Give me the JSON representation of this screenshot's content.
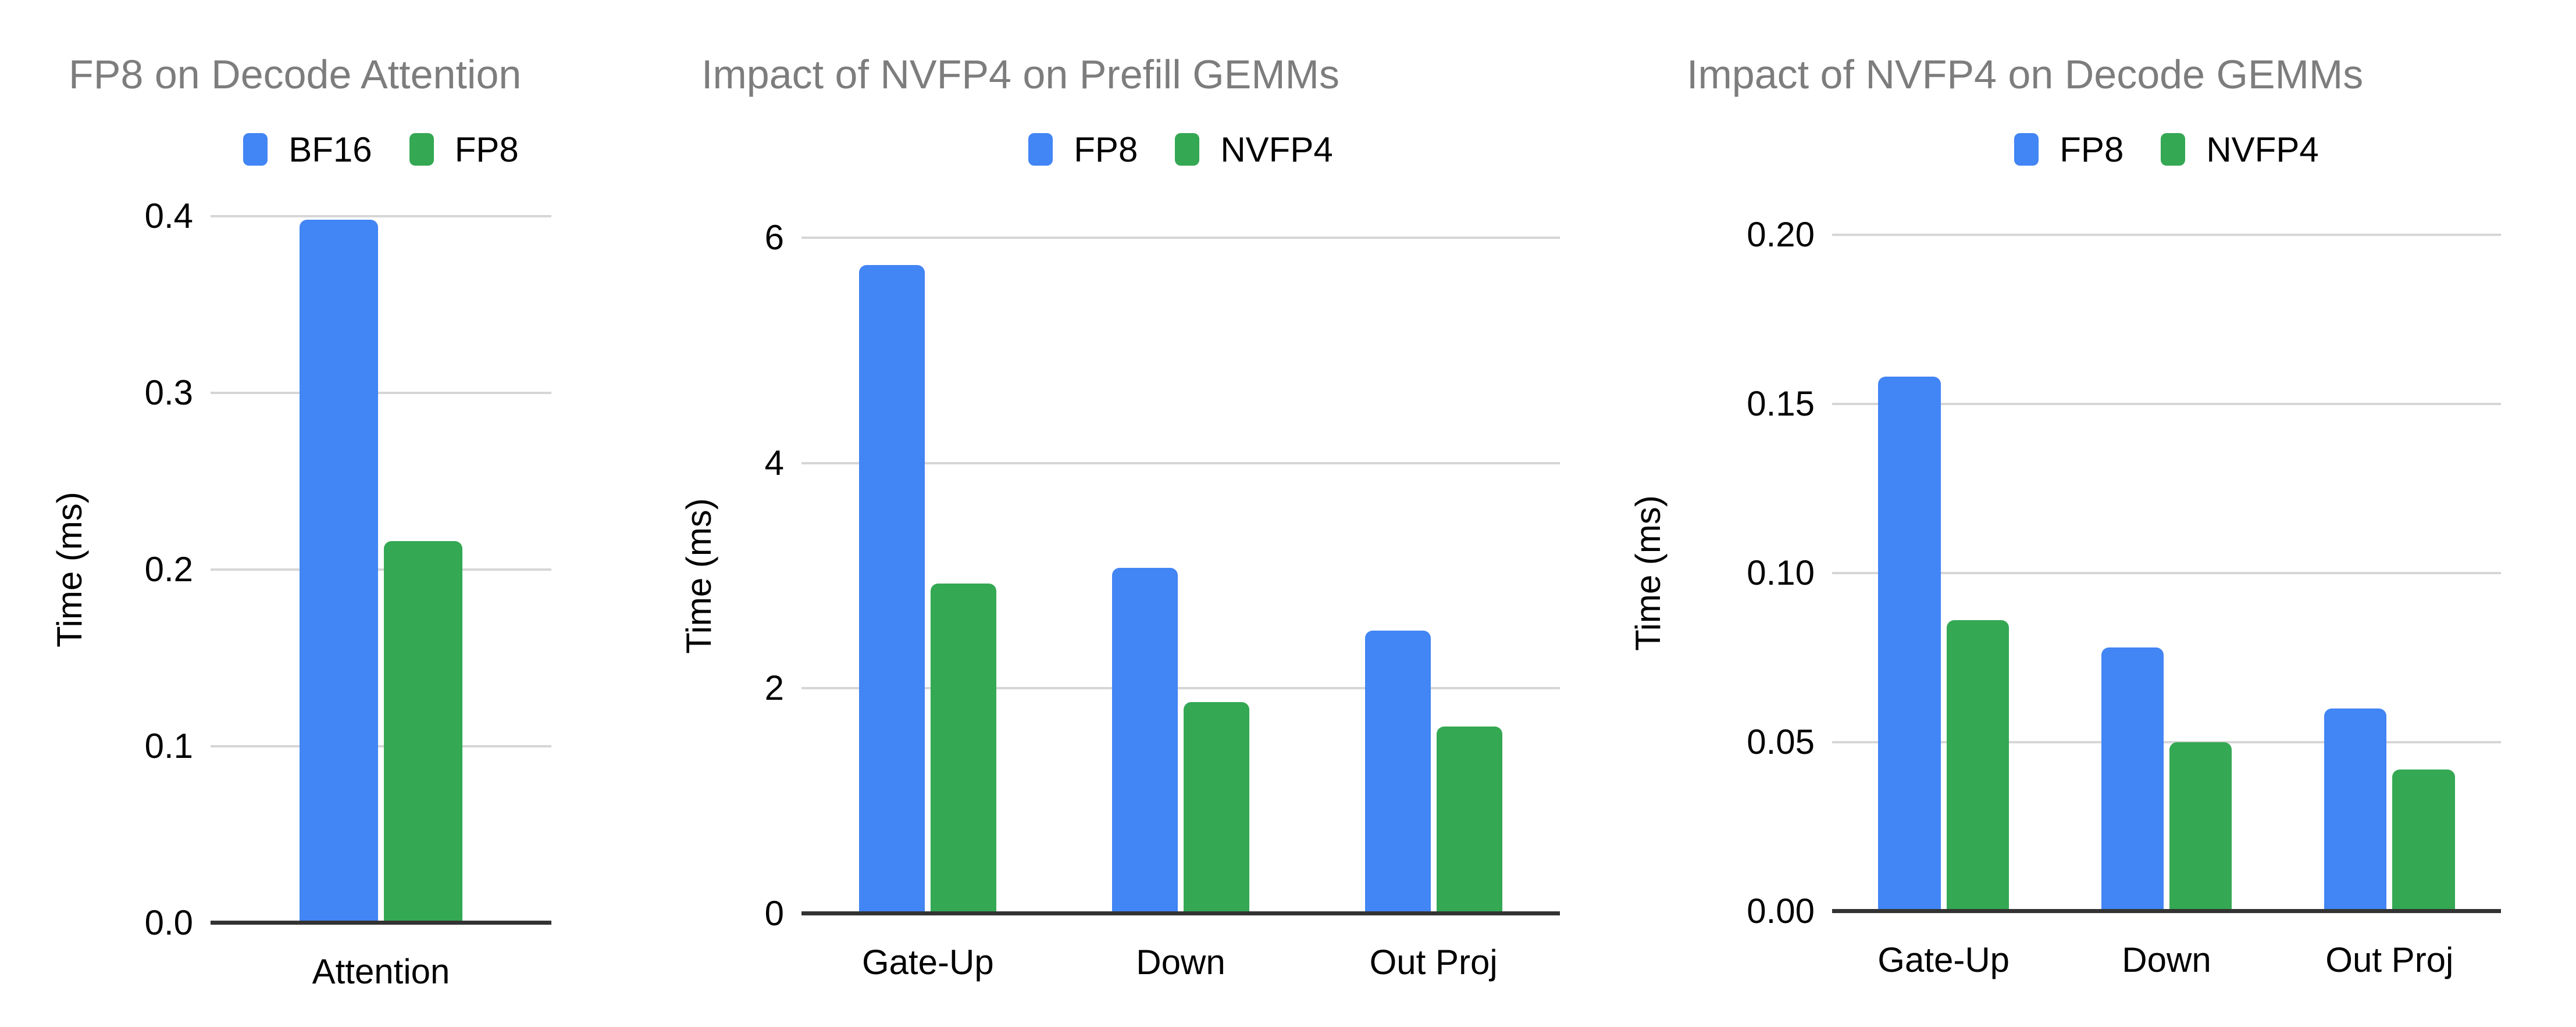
{
  "page": {
    "background_color": "#ffffff",
    "title_color": "#7d7d7d",
    "text_color": "#000000",
    "gridline_color": "#d6d6d6",
    "axis_line_color": "#333333"
  },
  "colors": {
    "series_blue": "#4285F4",
    "series_green": "#34A853"
  },
  "chart_data": [
    {
      "type": "bar",
      "title": "FP8 on Decode Attention",
      "xlabel": "",
      "ylabel": "Time (ms)",
      "categories": [
        "Attention"
      ],
      "series": [
        {
          "name": "BF16",
          "color": "#4285F4",
          "values": [
            0.398
          ]
        },
        {
          "name": "FP8",
          "color": "#34A853",
          "values": [
            0.216
          ]
        }
      ],
      "ylim": [
        0,
        0.4
      ],
      "yticks": [
        {
          "value": 0.0,
          "label": "0.0"
        },
        {
          "value": 0.1,
          "label": "0.1"
        },
        {
          "value": 0.2,
          "label": "0.2"
        },
        {
          "value": 0.3,
          "label": "0.3"
        },
        {
          "value": 0.4,
          "label": "0.4"
        }
      ],
      "grid": true,
      "legend_position": "top"
    },
    {
      "type": "bar",
      "title": "Impact of NVFP4 on Prefill GEMMs",
      "xlabel": "",
      "ylabel": "Time (ms)",
      "categories": [
        "Gate-Up",
        "Down",
        "Out Proj"
      ],
      "series": [
        {
          "name": "FP8",
          "color": "#4285F4",
          "values": [
            5.76,
            3.07,
            2.51
          ]
        },
        {
          "name": "NVFP4",
          "color": "#34A853",
          "values": [
            2.93,
            1.88,
            1.66
          ]
        }
      ],
      "ylim": [
        0,
        6
      ],
      "yticks": [
        {
          "value": 0,
          "label": "0"
        },
        {
          "value": 2,
          "label": "2"
        },
        {
          "value": 4,
          "label": "4"
        },
        {
          "value": 6,
          "label": "6"
        }
      ],
      "grid": true,
      "legend_position": "top"
    },
    {
      "type": "bar",
      "title": "Impact of NVFP4 on Decode GEMMs",
      "xlabel": "",
      "ylabel": "Time (ms)",
      "categories": [
        "Gate-Up",
        "Down",
        "Out Proj"
      ],
      "series": [
        {
          "name": "FP8",
          "color": "#4285F4",
          "values": [
            0.158,
            0.078,
            0.06
          ]
        },
        {
          "name": "NVFP4",
          "color": "#34A853",
          "values": [
            0.086,
            0.05,
            0.042
          ]
        }
      ],
      "ylim": [
        0,
        0.2
      ],
      "yticks": [
        {
          "value": 0.0,
          "label": "0.00"
        },
        {
          "value": 0.05,
          "label": "0.05"
        },
        {
          "value": 0.1,
          "label": "0.10"
        },
        {
          "value": 0.15,
          "label": "0.15"
        },
        {
          "value": 0.2,
          "label": "0.20"
        }
      ],
      "grid": true,
      "legend_position": "top"
    }
  ]
}
